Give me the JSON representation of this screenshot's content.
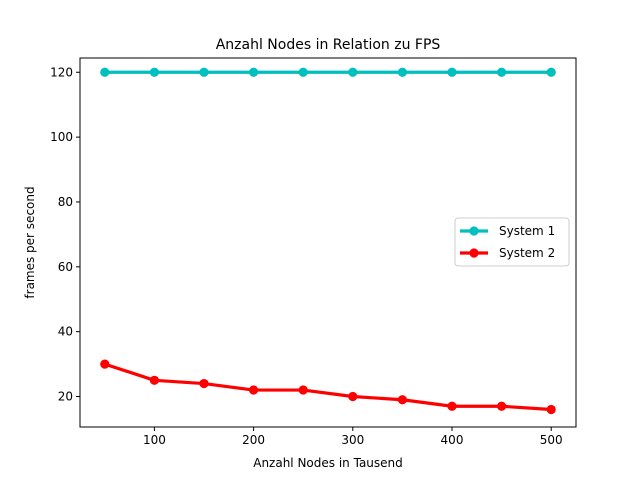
{
  "chart_data": {
    "type": "line",
    "title": "Anzahl Nodes in Relation zu FPS",
    "xlabel": "Anzahl Nodes in Tausend",
    "ylabel": "frames per second",
    "x": [
      50,
      100,
      150,
      200,
      250,
      300,
      350,
      400,
      450,
      500
    ],
    "xlim": [
      25,
      525
    ],
    "ylim": [
      10.6,
      124.4
    ],
    "xticks": [
      100,
      200,
      300,
      400,
      500
    ],
    "yticks": [
      20,
      40,
      60,
      80,
      100,
      120
    ],
    "grid": false,
    "legend_position": "center-right",
    "series": [
      {
        "name": "System 1",
        "color": "#00bfbf",
        "marker": "circle",
        "values": [
          120,
          120,
          120,
          120,
          120,
          120,
          120,
          120,
          120,
          120
        ]
      },
      {
        "name": "System 2",
        "color": "#ff0000",
        "marker": "circle",
        "values": [
          30,
          25,
          24,
          22,
          22,
          20,
          19,
          17,
          17,
          16
        ]
      }
    ]
  }
}
